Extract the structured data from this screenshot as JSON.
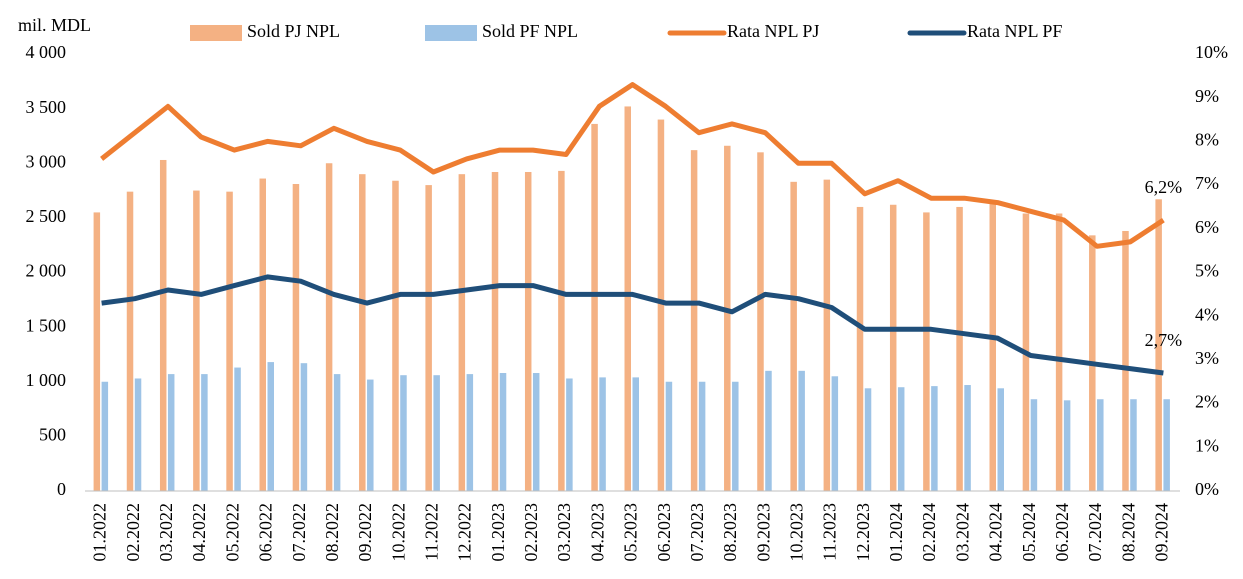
{
  "chart_data": {
    "type": "bar-line",
    "y_label": "mil. MDL",
    "categories": [
      "01.2022",
      "02.2022",
      "03.2022",
      "04.2022",
      "05.2022",
      "06.2022",
      "07.2022",
      "08.2022",
      "09.2022",
      "10.2022",
      "11.2022",
      "12.2022",
      "01.2023",
      "02.2023",
      "03.2023",
      "04.2023",
      "05.2023",
      "06.2023",
      "07.2023",
      "08.2023",
      "09.2023",
      "10.2023",
      "11.2023",
      "12.2023",
      "01.2024",
      "02.2024",
      "03.2024",
      "04.2024",
      "05.2024",
      "06.2024",
      "07.2024",
      "08.2024",
      "09.2024"
    ],
    "series": [
      {
        "name": "Sold PJ NPL",
        "type": "bar",
        "color": "#f4b183",
        "values": [
          2550,
          2740,
          3030,
          2750,
          2740,
          2860,
          2810,
          3000,
          2900,
          2840,
          2800,
          2900,
          2920,
          2920,
          2930,
          3360,
          3520,
          3400,
          3120,
          3160,
          3100,
          2830,
          2850,
          2600,
          2620,
          2550,
          2600,
          2630,
          2540,
          2540,
          2340,
          2380,
          2670
        ]
      },
      {
        "name": "Sold PF NPL",
        "type": "bar",
        "color": "#9dc3e6",
        "values": [
          1000,
          1030,
          1070,
          1070,
          1130,
          1180,
          1170,
          1070,
          1020,
          1060,
          1060,
          1070,
          1080,
          1080,
          1030,
          1040,
          1040,
          1000,
          1000,
          1000,
          1100,
          1100,
          1050,
          940,
          950,
          960,
          970,
          940,
          840,
          830,
          840,
          840,
          840
        ]
      },
      {
        "name": "Rata NPL PJ",
        "type": "line",
        "axis": "y2",
        "color": "#ee7d31",
        "values": [
          7.6,
          8.2,
          8.8,
          8.1,
          7.8,
          8.0,
          7.9,
          8.3,
          8.0,
          7.8,
          7.3,
          7.6,
          7.8,
          7.8,
          7.7,
          8.8,
          9.3,
          8.8,
          8.2,
          8.4,
          8.2,
          7.5,
          7.5,
          6.8,
          7.1,
          6.7,
          6.7,
          6.6,
          6.4,
          6.2,
          5.6,
          5.7,
          6.2
        ],
        "value_labels": [
          null,
          null,
          null,
          null,
          null,
          null,
          null,
          null,
          null,
          null,
          null,
          null,
          null,
          null,
          null,
          null,
          null,
          null,
          null,
          null,
          null,
          null,
          null,
          null,
          null,
          null,
          null,
          null,
          null,
          null,
          null,
          null,
          "6,2%"
        ]
      },
      {
        "name": "Rata NPL PF",
        "type": "line",
        "axis": "y2",
        "color": "#1f4e79",
        "values": [
          4.3,
          4.4,
          4.6,
          4.5,
          4.7,
          4.9,
          4.8,
          4.5,
          4.3,
          4.5,
          4.5,
          4.6,
          4.7,
          4.7,
          4.5,
          4.5,
          4.5,
          4.3,
          4.3,
          4.1,
          4.5,
          4.4,
          4.2,
          3.7,
          3.7,
          3.7,
          3.6,
          3.5,
          3.1,
          3.0,
          2.9,
          2.8,
          2.7
        ],
        "value_labels": [
          null,
          null,
          null,
          null,
          null,
          null,
          null,
          null,
          null,
          null,
          null,
          null,
          null,
          null,
          null,
          null,
          null,
          null,
          null,
          null,
          null,
          null,
          null,
          null,
          null,
          null,
          null,
          null,
          null,
          null,
          null,
          null,
          "2,7%"
        ]
      }
    ],
    "ylim": [
      0,
      4000
    ],
    "yticks": [
      0,
      500,
      {
        "value": 1000,
        "label": "1 000"
      },
      {
        "value": 1500,
        "label": "1 500"
      },
      {
        "value": 2000,
        "label": "2 000"
      },
      {
        "value": 2500,
        "label": "2 500"
      },
      {
        "value": 3000,
        "label": "3 000"
      },
      {
        "value": 3500,
        "label": "3 500"
      },
      {
        "value": 4000,
        "label": "4 000"
      }
    ],
    "y2lim": [
      0,
      10
    ],
    "y2ticks": [
      {
        "value": 0,
        "label": "0%"
      },
      {
        "value": 1,
        "label": "1%"
      },
      {
        "value": 2,
        "label": "2%"
      },
      {
        "value": 3,
        "label": "3%"
      },
      {
        "value": 4,
        "label": "4%"
      },
      {
        "value": 5,
        "label": "5%"
      },
      {
        "value": 6,
        "label": "6%"
      },
      {
        "value": 7,
        "label": "7%"
      },
      {
        "value": 8,
        "label": "8%"
      },
      {
        "value": 9,
        "label": "9%"
      },
      {
        "value": 10,
        "label": "10%"
      }
    ],
    "grid": false,
    "legend": "top"
  }
}
